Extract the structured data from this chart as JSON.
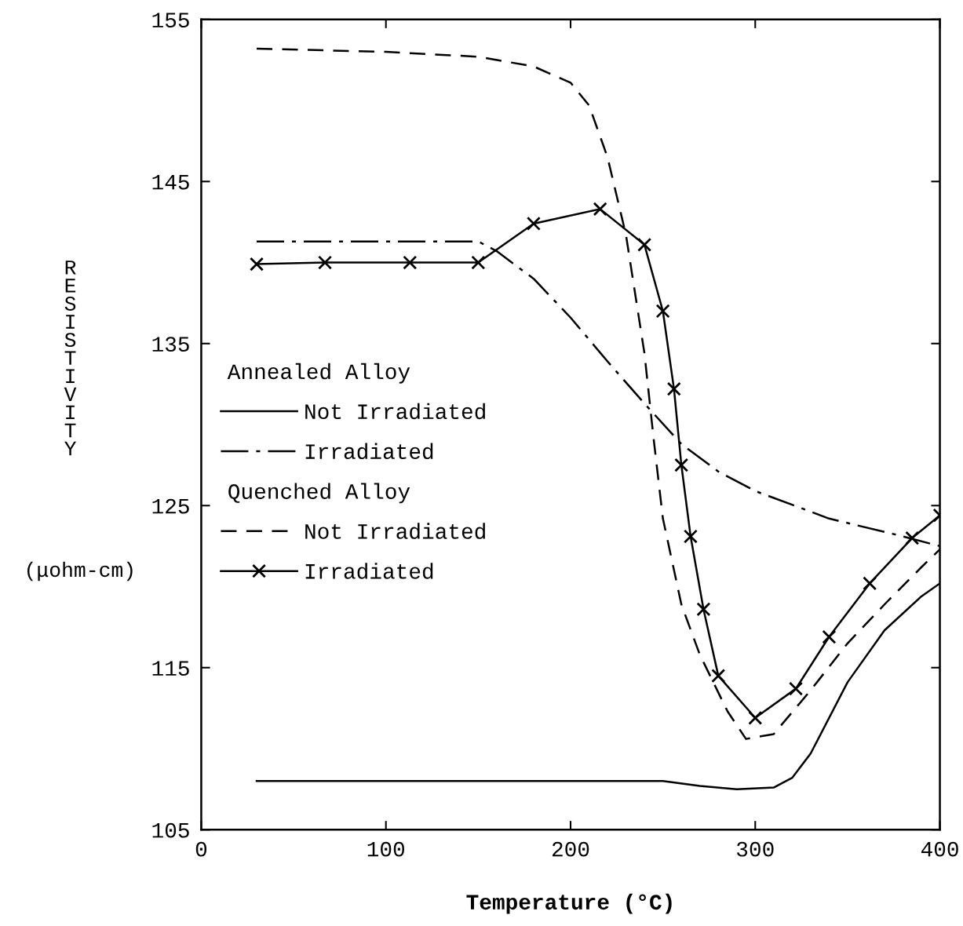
{
  "chart_data": {
    "type": "line",
    "xlabel": "Temperature (°C)",
    "ylabel": "RESISTIVITY (μohm-cm)",
    "xlim": [
      0,
      400
    ],
    "ylim": [
      105,
      155
    ],
    "xticks": [
      0,
      100,
      200,
      300,
      400
    ],
    "yticks": [
      105,
      115,
      125,
      135,
      145,
      155
    ],
    "grid": false,
    "legend": "left",
    "annotations": [
      "Annealed Alloy",
      "Quenched Alloy"
    ],
    "series": [
      {
        "name": "Not Irradiated",
        "color": "#000000",
        "line_style": "solid",
        "marker": "none",
        "x": [
          30,
          100,
          200,
          250,
          270,
          290,
          310,
          320,
          330,
          350,
          370,
          390,
          400
        ],
        "values": [
          108,
          108,
          108,
          108,
          107.7,
          107.5,
          107.6,
          108.2,
          109.7,
          114.1,
          117.3,
          119.4,
          120.2
        ]
      },
      {
        "name": "Irradiated",
        "color": "#000000",
        "line_style": "dashdot",
        "marker": "none",
        "x": [
          30,
          150,
          160,
          180,
          200,
          220,
          240,
          260,
          280,
          300,
          340,
          380,
          400
        ],
        "values": [
          141.3,
          141.3,
          140.7,
          139.0,
          136.6,
          133.9,
          131.3,
          128.8,
          127.1,
          125.9,
          124.2,
          123.1,
          122.5
        ]
      },
      {
        "name": "Not Irradiated",
        "color": "#000000",
        "line_style": "dashed",
        "marker": "none",
        "x": [
          30,
          100,
          150,
          180,
          200,
          210,
          220,
          230,
          240,
          245,
          250,
          260,
          270,
          285,
          295,
          310,
          330,
          350,
          370,
          390,
          400
        ],
        "values": [
          153.2,
          153.0,
          152.7,
          152.1,
          151.1,
          149.7,
          146.5,
          141.7,
          134.4,
          129.1,
          124.2,
          118.9,
          115.8,
          112.3,
          110.6,
          110.9,
          113.6,
          116.5,
          118.9,
          121.2,
          122.3
        ]
      },
      {
        "name": "Irradiated",
        "color": "#000000",
        "line_style": "solid",
        "marker": "cross",
        "x": [
          30,
          67,
          113,
          150,
          180,
          216,
          240,
          250,
          256,
          260,
          265,
          272,
          280,
          300,
          322,
          340,
          362,
          385,
          400
        ],
        "values": [
          139.9,
          140.0,
          140.0,
          140.0,
          142.4,
          143.3,
          141.1,
          137.0,
          132.2,
          127.5,
          123.1,
          118.6,
          114.5,
          111.9,
          113.7,
          116.9,
          120.2,
          123.0,
          124.4
        ]
      }
    ]
  }
}
